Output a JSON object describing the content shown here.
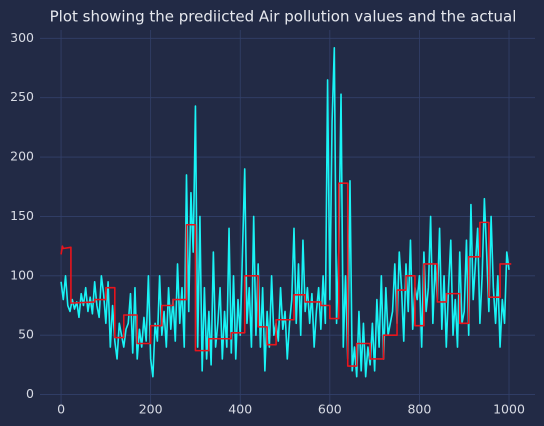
{
  "chart_data": {
    "type": "line",
    "title": "Plot showing the prediicted Air pollution values and the actual",
    "xlim": [
      -47,
      1058
    ],
    "ylim": [
      -13,
      307
    ],
    "xticks": [
      0,
      200,
      400,
      600,
      800,
      1000
    ],
    "yticks": [
      0,
      50,
      100,
      150,
      200,
      250,
      300
    ],
    "grid": true,
    "series": [
      {
        "color": "#19f3f5",
        "x": [
          0,
          5,
          10,
          15,
          20,
          25,
          30,
          35,
          40,
          45,
          50,
          55,
          60,
          65,
          70,
          75,
          80,
          85,
          90,
          95,
          100,
          105,
          110,
          115,
          120,
          125,
          130,
          135,
          140,
          145,
          150,
          155,
          160,
          165,
          170,
          175,
          180,
          185,
          190,
          195,
          200,
          205,
          210,
          215,
          220,
          225,
          230,
          235,
          240,
          245,
          250,
          255,
          260,
          265,
          270,
          275,
          280,
          285,
          290,
          295,
          300,
          305,
          310,
          315,
          320,
          325,
          330,
          335,
          340,
          345,
          350,
          355,
          360,
          365,
          370,
          375,
          380,
          385,
          390,
          395,
          400,
          405,
          410,
          415,
          420,
          425,
          430,
          435,
          440,
          445,
          450,
          455,
          460,
          465,
          470,
          475,
          480,
          485,
          490,
          495,
          500,
          505,
          510,
          515,
          520,
          525,
          530,
          535,
          540,
          545,
          550,
          555,
          560,
          565,
          570,
          575,
          580,
          585,
          590,
          595,
          600,
          605,
          610,
          615,
          620,
          625,
          630,
          635,
          640,
          645,
          650,
          655,
          660,
          665,
          670,
          675,
          680,
          685,
          690,
          695,
          700,
          705,
          710,
          715,
          720,
          725,
          730,
          735,
          740,
          745,
          750,
          755,
          760,
          765,
          770,
          775,
          780,
          785,
          790,
          795,
          800,
          805,
          810,
          815,
          820,
          825,
          830,
          835,
          840,
          845,
          850,
          855,
          860,
          865,
          870,
          875,
          880,
          885,
          890,
          895,
          900,
          905,
          910,
          915,
          920,
          925,
          930,
          935,
          940,
          945,
          950,
          955,
          960,
          965,
          970,
          975,
          980,
          985,
          990,
          995,
          1000
        ],
        "values": [
          95,
          80,
          100,
          75,
          70,
          80,
          72,
          78,
          65,
          85,
          75,
          90,
          70,
          82,
          68,
          95,
          75,
          65,
          100,
          85,
          60,
          95,
          40,
          75,
          45,
          30,
          60,
          50,
          40,
          55,
          60,
          85,
          35,
          90,
          30,
          55,
          40,
          65,
          45,
          100,
          30,
          15,
          60,
          45,
          100,
          50,
          70,
          40,
          90,
          55,
          80,
          45,
          110,
          60,
          90,
          40,
          185,
          70,
          170,
          120,
          243,
          40,
          150,
          20,
          90,
          30,
          70,
          25,
          120,
          40,
          60,
          90,
          30,
          70,
          40,
          140,
          35,
          100,
          30,
          80,
          50,
          120,
          190,
          60,
          90,
          40,
          150,
          50,
          110,
          40,
          90,
          20,
          70,
          40,
          100,
          50,
          60,
          45,
          90,
          55,
          70,
          30,
          60,
          80,
          140,
          60,
          110,
          50,
          130,
          70,
          90,
          60,
          85,
          40,
          70,
          90,
          55,
          100,
          60,
          265,
          80,
          230,
          292,
          60,
          120,
          253,
          40,
          100,
          30,
          180,
          20,
          40,
          15,
          70,
          20,
          60,
          15,
          40,
          25,
          60,
          20,
          80,
          40,
          100,
          30,
          90,
          50,
          60,
          70,
          110,
          60,
          120,
          90,
          45,
          110,
          70,
          130,
          55,
          90,
          80,
          100,
          40,
          120,
          70,
          90,
          150,
          60,
          110,
          80,
          140,
          55,
          100,
          40,
          90,
          130,
          50,
          80,
          40,
          120,
          60,
          70,
          130,
          50,
          160,
          80,
          110,
          140,
          60,
          100,
          165,
          120,
          70,
          150,
          90,
          60,
          100,
          40,
          80,
          60,
          120,
          105
        ]
      },
      {
        "color": "#e8141c",
        "x": [
          0,
          3,
          5,
          22,
          22,
          75,
          75,
          100,
          100,
          120,
          120,
          140,
          140,
          170,
          170,
          200,
          200,
          225,
          225,
          250,
          250,
          280,
          280,
          300,
          300,
          330,
          330,
          380,
          380,
          410,
          410,
          440,
          440,
          460,
          460,
          480,
          480,
          520,
          520,
          545,
          545,
          580,
          580,
          600,
          600,
          620,
          620,
          640,
          640,
          660,
          660,
          690,
          690,
          720,
          720,
          750,
          750,
          770,
          770,
          790,
          790,
          810,
          810,
          840,
          840,
          860,
          860,
          890,
          890,
          910,
          910,
          935,
          935,
          955,
          955,
          980,
          980,
          1005
        ],
        "values": [
          118,
          125,
          123,
          124,
          77,
          78,
          80,
          80,
          90,
          90,
          48,
          48,
          67,
          67,
          43,
          43,
          58,
          58,
          75,
          75,
          80,
          80,
          143,
          143,
          37,
          37,
          47,
          47,
          52,
          52,
          100,
          100,
          57,
          57,
          42,
          42,
          63,
          63,
          84,
          84,
          78,
          78,
          75,
          75,
          64,
          64,
          178,
          178,
          24,
          24,
          43,
          43,
          30,
          30,
          50,
          50,
          88,
          88,
          100,
          100,
          58,
          58,
          110,
          110,
          78,
          78,
          85,
          85,
          60,
          60,
          116,
          116,
          145,
          145,
          82,
          82,
          110,
          110
        ]
      }
    ]
  }
}
